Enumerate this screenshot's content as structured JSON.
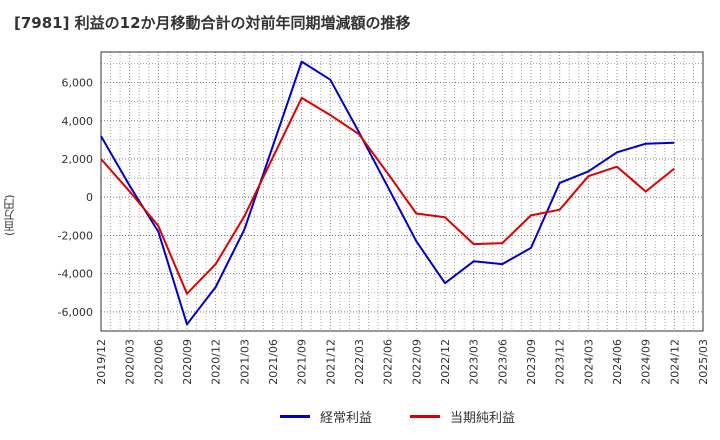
{
  "title": "[7981]  利益の12か月移動合計の対前年同期増減額の推移",
  "chart_data": {
    "type": "line",
    "title": "[7981]  利益の12か月移動合計の対前年同期増減額の推移",
    "xlabel": "",
    "ylabel": "(百万円)",
    "categories": [
      "2019/12",
      "2020/03",
      "2020/06",
      "2020/09",
      "2020/12",
      "2021/03",
      "2021/06",
      "2021/09",
      "2021/12",
      "2022/03",
      "2022/06",
      "2022/09",
      "2022/12",
      "2023/03",
      "2023/06",
      "2023/09",
      "2023/12",
      "2024/03",
      "2024/06",
      "2024/09",
      "2024/12",
      "2025/03"
    ],
    "yticks": [
      6000,
      4000,
      2000,
      0,
      -2000,
      -4000,
      -6000
    ],
    "ytick_labels": [
      "6,000",
      "4,000",
      "2,000",
      "0",
      "-2,000",
      "-4,000",
      "-6,000"
    ],
    "ylim": [
      -7000,
      7600
    ],
    "grid": true,
    "series": [
      {
        "name": "経常利益",
        "color": "#0000cc",
        "values": [
          3200,
          600,
          -1800,
          -6650,
          -4700,
          -1700,
          2700,
          7100,
          6150,
          3400,
          550,
          -2300,
          -4500,
          -3350,
          -3500,
          -2650,
          750,
          1350,
          2350,
          2800,
          2850,
          null
        ]
      },
      {
        "name": "当期純利益",
        "color": "#dd0000",
        "values": [
          2000,
          300,
          -1500,
          -5050,
          -3500,
          -1000,
          2100,
          5200,
          4300,
          3300,
          1250,
          -850,
          -1050,
          -2450,
          -2400,
          -950,
          -650,
          1100,
          1600,
          300,
          1500,
          null
        ]
      }
    ]
  }
}
